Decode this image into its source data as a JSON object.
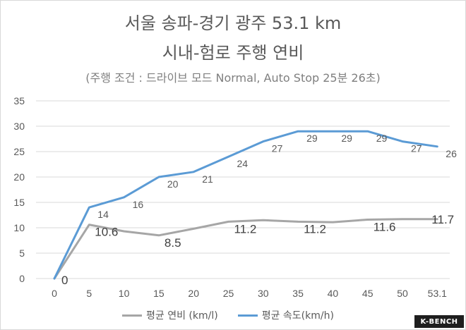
{
  "chart_data": {
    "type": "line",
    "title": "서울 송파-경기 광주  53.1 km",
    "subtitle": "시내-험로 주행 연비",
    "note": "(주행 조건 : 드라이브 모드 Normal, Auto Stop 25분 26초)",
    "categories": [
      "0",
      "5",
      "10",
      "15",
      "20",
      "25",
      "30",
      "35",
      "40",
      "45",
      "50",
      "53.1"
    ],
    "x": [
      0,
      5,
      10,
      15,
      20,
      25,
      30,
      35,
      40,
      45,
      50,
      53.1
    ],
    "y_ticks": [
      "0",
      "5",
      "10",
      "15",
      "20",
      "25",
      "30",
      "35"
    ],
    "ylim": [
      0,
      35
    ],
    "grid": true,
    "legend_position": "bottom",
    "series": [
      {
        "name": "평균 연비 (km/l)",
        "color": "#a6a6a6",
        "values": [
          0,
          10.6,
          9.3,
          8.5,
          9.8,
          11.2,
          11.5,
          11.2,
          11.1,
          11.6,
          11.7,
          11.7
        ],
        "labels": [
          "0",
          "10.6",
          "",
          "8.5",
          "",
          "11.2",
          "",
          "11.2",
          "",
          "11.6",
          "",
          "11.7"
        ]
      },
      {
        "name": "평균 속도(km/h)",
        "color": "#5b9bd5",
        "values": [
          0,
          14,
          16,
          20,
          21,
          24,
          27,
          29,
          29,
          29,
          27,
          26
        ],
        "labels": [
          "",
          "14",
          "16",
          "20",
          "21",
          "24",
          "27",
          "29",
          "29",
          "29",
          "27",
          "26"
        ]
      }
    ]
  },
  "logo": {
    "text": "K-BENCH"
  }
}
